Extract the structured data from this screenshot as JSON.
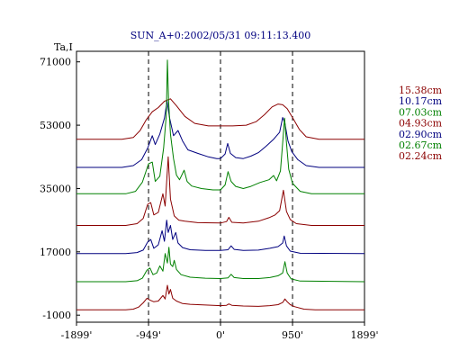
{
  "window": {
    "title": "SUN_A+0:2002/05/31 09:11:13.400"
  },
  "chart_data": {
    "type": "line",
    "title": "SUN_A+0:2002/05/31 09:11:13.400",
    "ylabel": "Ta,I",
    "xlim": [
      -1899,
      1899
    ],
    "ylim": [
      -3000,
      74000
    ],
    "y_ticks": [
      {
        "value": 71000,
        "label": "71000"
      },
      {
        "value": 53000,
        "label": "53000"
      },
      {
        "value": 35000,
        "label": "35000"
      },
      {
        "value": 17000,
        "label": "17000"
      },
      {
        "value": -1000,
        "label": "-1000"
      }
    ],
    "x_ticks": [
      {
        "value": -1899,
        "label": "-1899'"
      },
      {
        "value": -949,
        "label": "-949'"
      },
      {
        "value": 0,
        "label": "0'"
      },
      {
        "value": 950,
        "label": "950'"
      },
      {
        "value": 1899,
        "label": "1899'"
      }
    ],
    "dashed_lines_x": [
      -949,
      0,
      950
    ],
    "grid": false,
    "legend_position": "right",
    "colors": {
      "red": "#8b0000",
      "blue": "#00007f",
      "green": "#008000"
    },
    "series": [
      {
        "name": "15.38cm",
        "color": "#8b0000",
        "points": [
          [
            -1899,
            49000
          ],
          [
            -1300,
            49000
          ],
          [
            -1150,
            49500
          ],
          [
            -1060,
            51500
          ],
          [
            -980,
            54500
          ],
          [
            -900,
            56800
          ],
          [
            -820,
            58000
          ],
          [
            -740,
            59800
          ],
          [
            -660,
            60500
          ],
          [
            -580,
            58500
          ],
          [
            -470,
            55500
          ],
          [
            -340,
            53500
          ],
          [
            -160,
            52800
          ],
          [
            0,
            52800
          ],
          [
            160,
            52800
          ],
          [
            340,
            53000
          ],
          [
            470,
            54000
          ],
          [
            580,
            56000
          ],
          [
            680,
            58200
          ],
          [
            760,
            59000
          ],
          [
            820,
            58800
          ],
          [
            880,
            57700
          ],
          [
            960,
            54800
          ],
          [
            1040,
            51800
          ],
          [
            1130,
            49700
          ],
          [
            1300,
            49000
          ],
          [
            1899,
            49000
          ]
        ]
      },
      {
        "name": "10.17cm",
        "color": "#00007f",
        "points": [
          [
            -1899,
            41000
          ],
          [
            -1300,
            41000
          ],
          [
            -1150,
            41500
          ],
          [
            -1040,
            43200
          ],
          [
            -960,
            46500
          ],
          [
            -900,
            50000
          ],
          [
            -860,
            47500
          ],
          [
            -800,
            50500
          ],
          [
            -740,
            55000
          ],
          [
            -705,
            59800
          ],
          [
            -670,
            55000
          ],
          [
            -620,
            50000
          ],
          [
            -560,
            51500
          ],
          [
            -500,
            48500
          ],
          [
            -430,
            46000
          ],
          [
            -300,
            45000
          ],
          [
            -160,
            44000
          ],
          [
            -50,
            43500
          ],
          [
            0,
            43500
          ],
          [
            60,
            44800
          ],
          [
            95,
            47800
          ],
          [
            130,
            45000
          ],
          [
            200,
            43800
          ],
          [
            300,
            43500
          ],
          [
            400,
            44200
          ],
          [
            500,
            45200
          ],
          [
            600,
            47000
          ],
          [
            700,
            49000
          ],
          [
            780,
            51000
          ],
          [
            820,
            55200
          ],
          [
            850,
            53500
          ],
          [
            890,
            48500
          ],
          [
            940,
            45500
          ],
          [
            1020,
            43200
          ],
          [
            1130,
            41500
          ],
          [
            1300,
            41000
          ],
          [
            1899,
            41000
          ]
        ]
      },
      {
        "name": "07.03cm",
        "color": "#008000",
        "points": [
          [
            -1899,
            33500
          ],
          [
            -1250,
            33500
          ],
          [
            -1120,
            34200
          ],
          [
            -1030,
            36800
          ],
          [
            -950,
            42000
          ],
          [
            -900,
            42500
          ],
          [
            -860,
            37000
          ],
          [
            -800,
            38500
          ],
          [
            -750,
            46500
          ],
          [
            -715,
            56000
          ],
          [
            -700,
            71500
          ],
          [
            -685,
            60000
          ],
          [
            -660,
            50500
          ],
          [
            -620,
            43500
          ],
          [
            -580,
            38800
          ],
          [
            -540,
            37500
          ],
          [
            -480,
            40200
          ],
          [
            -440,
            37000
          ],
          [
            -380,
            35700
          ],
          [
            -250,
            35000
          ],
          [
            -100,
            34600
          ],
          [
            0,
            34600
          ],
          [
            60,
            36000
          ],
          [
            100,
            39800
          ],
          [
            140,
            37000
          ],
          [
            200,
            35600
          ],
          [
            300,
            35000
          ],
          [
            400,
            35600
          ],
          [
            520,
            36700
          ],
          [
            640,
            37500
          ],
          [
            700,
            38700
          ],
          [
            740,
            37200
          ],
          [
            790,
            40000
          ],
          [
            820,
            48000
          ],
          [
            845,
            55000
          ],
          [
            870,
            48000
          ],
          [
            900,
            40500
          ],
          [
            950,
            36500
          ],
          [
            1050,
            34200
          ],
          [
            1200,
            33500
          ],
          [
            1899,
            33500
          ]
        ]
      },
      {
        "name": "04.93cm",
        "color": "#8b0000",
        "points": [
          [
            -1899,
            24500
          ],
          [
            -1250,
            24500
          ],
          [
            -1100,
            25000
          ],
          [
            -1020,
            26500
          ],
          [
            -960,
            30500
          ],
          [
            -920,
            31000
          ],
          [
            -880,
            27500
          ],
          [
            -820,
            28200
          ],
          [
            -760,
            33500
          ],
          [
            -730,
            30000
          ],
          [
            -690,
            44000
          ],
          [
            -660,
            32000
          ],
          [
            -610,
            27200
          ],
          [
            -550,
            26000
          ],
          [
            -470,
            25700
          ],
          [
            -300,
            25300
          ],
          [
            0,
            25200
          ],
          [
            80,
            25600
          ],
          [
            110,
            26800
          ],
          [
            150,
            25400
          ],
          [
            300,
            25200
          ],
          [
            500,
            25700
          ],
          [
            640,
            26700
          ],
          [
            720,
            27500
          ],
          [
            780,
            28700
          ],
          [
            830,
            34500
          ],
          [
            870,
            28500
          ],
          [
            920,
            26200
          ],
          [
            1000,
            25000
          ],
          [
            1200,
            24500
          ],
          [
            1899,
            24500
          ]
        ]
      },
      {
        "name": "02.90cm",
        "color": "#00007f",
        "points": [
          [
            -1899,
            16500
          ],
          [
            -1250,
            16500
          ],
          [
            -1100,
            16800
          ],
          [
            -1020,
            17500
          ],
          [
            -960,
            19800
          ],
          [
            -920,
            20500
          ],
          [
            -880,
            18000
          ],
          [
            -820,
            19000
          ],
          [
            -770,
            23000
          ],
          [
            -740,
            20000
          ],
          [
            -710,
            26000
          ],
          [
            -690,
            22500
          ],
          [
            -660,
            24500
          ],
          [
            -630,
            20500
          ],
          [
            -590,
            22500
          ],
          [
            -560,
            19500
          ],
          [
            -500,
            18200
          ],
          [
            -400,
            17600
          ],
          [
            -200,
            17400
          ],
          [
            0,
            17400
          ],
          [
            100,
            17600
          ],
          [
            140,
            18700
          ],
          [
            180,
            17700
          ],
          [
            300,
            17400
          ],
          [
            500,
            17500
          ],
          [
            650,
            18000
          ],
          [
            760,
            18500
          ],
          [
            820,
            19500
          ],
          [
            840,
            21500
          ],
          [
            870,
            18700
          ],
          [
            920,
            17200
          ],
          [
            1050,
            16600
          ],
          [
            1899,
            16500
          ]
        ]
      },
      {
        "name": "02.67cm",
        "color": "#008000",
        "points": [
          [
            -1899,
            8500
          ],
          [
            -1250,
            8500
          ],
          [
            -1100,
            8800
          ],
          [
            -1030,
            9500
          ],
          [
            -970,
            11800
          ],
          [
            -930,
            12400
          ],
          [
            -890,
            10500
          ],
          [
            -840,
            11000
          ],
          [
            -800,
            13000
          ],
          [
            -760,
            11500
          ],
          [
            -730,
            16500
          ],
          [
            -700,
            13800
          ],
          [
            -680,
            18300
          ],
          [
            -660,
            13500
          ],
          [
            -630,
            12800
          ],
          [
            -610,
            14600
          ],
          [
            -580,
            12000
          ],
          [
            -520,
            10500
          ],
          [
            -400,
            9800
          ],
          [
            -200,
            9500
          ],
          [
            0,
            9400
          ],
          [
            100,
            9600
          ],
          [
            140,
            10600
          ],
          [
            180,
            9700
          ],
          [
            300,
            9400
          ],
          [
            500,
            9400
          ],
          [
            650,
            9700
          ],
          [
            760,
            10200
          ],
          [
            820,
            11000
          ],
          [
            850,
            14200
          ],
          [
            880,
            11000
          ],
          [
            930,
            9300
          ],
          [
            1050,
            8700
          ],
          [
            1899,
            8500
          ]
        ]
      },
      {
        "name": "02.24cm",
        "color": "#8b0000",
        "points": [
          [
            -1899,
            500
          ],
          [
            -1250,
            500
          ],
          [
            -1150,
            700
          ],
          [
            -1080,
            1300
          ],
          [
            -1020,
            2500
          ],
          [
            -970,
            3800
          ],
          [
            -930,
            3300
          ],
          [
            -880,
            2800
          ],
          [
            -820,
            3000
          ],
          [
            -760,
            4600
          ],
          [
            -730,
            3600
          ],
          [
            -700,
            7500
          ],
          [
            -680,
            5000
          ],
          [
            -660,
            6300
          ],
          [
            -630,
            3800
          ],
          [
            -580,
            3000
          ],
          [
            -500,
            2300
          ],
          [
            -400,
            2100
          ],
          [
            -300,
            2000
          ],
          [
            -100,
            1800
          ],
          [
            0,
            1700
          ],
          [
            80,
            1800
          ],
          [
            110,
            2200
          ],
          [
            150,
            1800
          ],
          [
            300,
            1600
          ],
          [
            500,
            1500
          ],
          [
            650,
            1700
          ],
          [
            760,
            2000
          ],
          [
            820,
            2600
          ],
          [
            850,
            3600
          ],
          [
            880,
            2800
          ],
          [
            920,
            2000
          ],
          [
            980,
            1400
          ],
          [
            1100,
            700
          ],
          [
            1250,
            500
          ],
          [
            1899,
            500
          ]
        ]
      }
    ]
  }
}
